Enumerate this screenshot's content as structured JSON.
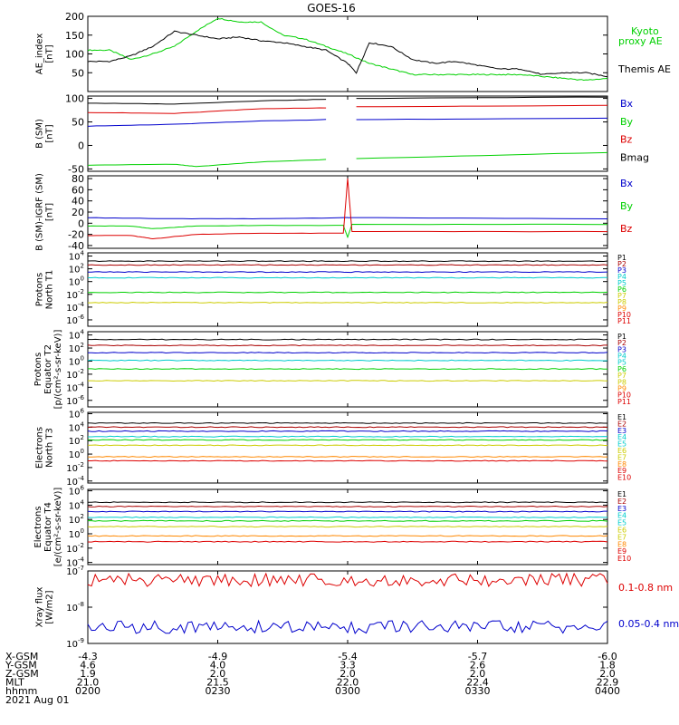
{
  "title": "GOES-16",
  "colors": {
    "black": "#000000",
    "green": "#00d000",
    "blue": "#0000cc",
    "red": "#dd0000",
    "orange": "#ff8800",
    "cyan": "#00cccc",
    "yellow": "#cccc00",
    "dark_red": "#aa0000"
  },
  "time_axis": {
    "ticks": [
      "0200",
      "0230",
      "0300",
      "0330",
      "0400"
    ],
    "rows": [
      {
        "label": "X-GSM",
        "values": [
          "-4.3",
          "-4.9",
          "-5.4",
          "-5.7",
          "-6.0"
        ]
      },
      {
        "label": "Y-GSM",
        "values": [
          "4.6",
          "4.0",
          "3.3",
          "2.6",
          "1.8"
        ]
      },
      {
        "label": "Z-GSM",
        "values": [
          "1.9",
          "2.0",
          "2.0",
          "2.0",
          "2.0"
        ]
      },
      {
        "label": "MLT",
        "values": [
          "21.0",
          "21.5",
          "22.0",
          "22.4",
          "22.9"
        ]
      },
      {
        "label": "hhmm",
        "values": [
          "0200",
          "0230",
          "0300",
          "0330",
          "0400"
        ]
      }
    ],
    "date": "2021 Aug 01"
  },
  "chart_data": [
    {
      "id": "ae",
      "type": "line",
      "ylabel": [
        "AE_index",
        "[nT]"
      ],
      "ylim": [
        0,
        200
      ],
      "ytick_labels": [
        "200",
        "150",
        "100",
        "50"
      ],
      "ytick_values": [
        200,
        150,
        100,
        50
      ],
      "legend": [
        {
          "text": "Kyoto",
          "color": "green"
        },
        {
          "text": "proxy AE",
          "color": "green"
        },
        {
          "text": "Themis AE",
          "color": "black"
        }
      ],
      "series": [
        {
          "name": "Kyoto proxy AE",
          "color": "green",
          "x": [
            0,
            5,
            10,
            15,
            20,
            25,
            30,
            35,
            40,
            45,
            50,
            55,
            60,
            65,
            70,
            75,
            80,
            85,
            90,
            95,
            100,
            105,
            110,
            115,
            120
          ],
          "values": [
            110,
            110,
            85,
            100,
            120,
            160,
            195,
            185,
            185,
            150,
            140,
            120,
            100,
            75,
            60,
            45,
            45,
            45,
            45,
            45,
            45,
            40,
            35,
            30,
            35
          ]
        },
        {
          "name": "Themis AE",
          "color": "black",
          "x": [
            0,
            5,
            10,
            15,
            20,
            25,
            30,
            35,
            40,
            45,
            50,
            55,
            60,
            62,
            65,
            70,
            75,
            80,
            85,
            90,
            95,
            100,
            105,
            110,
            115,
            120
          ],
          "values": [
            80,
            80,
            95,
            120,
            160,
            150,
            140,
            145,
            135,
            130,
            120,
            110,
            75,
            50,
            130,
            120,
            85,
            75,
            80,
            70,
            60,
            60,
            45,
            50,
            50,
            40
          ]
        }
      ]
    },
    {
      "id": "bsm",
      "type": "line",
      "ylabel": [
        "B (SM)",
        "[nT]"
      ],
      "ylim": [
        -55,
        105
      ],
      "ytick_labels": [
        "100",
        "50",
        "0",
        "-50"
      ],
      "ytick_values": [
        100,
        50,
        0,
        -50
      ],
      "legend": [
        {
          "text": "Bx",
          "color": "blue"
        },
        {
          "text": "By",
          "color": "green"
        },
        {
          "text": "Bz",
          "color": "red"
        },
        {
          "text": "Bmag",
          "color": "black"
        }
      ],
      "series": [
        {
          "name": "Bx",
          "color": "blue",
          "x": [
            0,
            20,
            40,
            55,
            58,
            60,
            62,
            120
          ],
          "values": [
            41,
            45,
            52,
            55,
            null,
            null,
            55,
            58
          ]
        },
        {
          "name": "By",
          "color": "green",
          "x": [
            0,
            20,
            25,
            40,
            55,
            58,
            60,
            62,
            120
          ],
          "values": [
            -42,
            -40,
            -45,
            -35,
            -30,
            null,
            null,
            -28,
            -15
          ]
        },
        {
          "name": "Bz",
          "color": "red",
          "x": [
            0,
            20,
            40,
            55,
            58,
            60,
            62,
            120
          ],
          "values": [
            70,
            68,
            78,
            80,
            null,
            null,
            82,
            85
          ]
        },
        {
          "name": "Bmag",
          "color": "black",
          "x": [
            0,
            20,
            40,
            55,
            58,
            60,
            62,
            120
          ],
          "values": [
            90,
            88,
            95,
            98,
            null,
            null,
            100,
            103
          ]
        }
      ]
    },
    {
      "id": "bigrf",
      "type": "line",
      "ylabel": [
        "B (SM)-IGRF (SM)",
        "[nT]"
      ],
      "ylim": [
        -45,
        85
      ],
      "ytick_labels": [
        "80",
        "60",
        "40",
        "20",
        "0",
        "-20",
        "-40"
      ],
      "ytick_values": [
        80,
        60,
        40,
        20,
        0,
        -20,
        -40
      ],
      "legend": [
        {
          "text": "Bx",
          "color": "blue"
        },
        {
          "text": "By",
          "color": "green"
        },
        {
          "text": "Bz",
          "color": "red"
        }
      ],
      "series": [
        {
          "name": "Bx",
          "color": "blue",
          "x": [
            0,
            20,
            40,
            60,
            61,
            120
          ],
          "values": [
            10,
            8,
            8,
            10,
            10,
            8
          ]
        },
        {
          "name": "By",
          "color": "green",
          "x": [
            0,
            10,
            15,
            25,
            40,
            59,
            60,
            61,
            120
          ],
          "values": [
            -5,
            -5,
            -10,
            -5,
            -4,
            -4,
            -25,
            -2,
            -2
          ]
        },
        {
          "name": "Bz",
          "color": "red",
          "x": [
            0,
            10,
            15,
            25,
            40,
            59,
            60,
            61,
            120
          ],
          "values": [
            -22,
            -22,
            -28,
            -20,
            -18,
            -18,
            80,
            -15,
            -15
          ]
        }
      ]
    },
    {
      "id": "p1",
      "type": "line",
      "log": true,
      "ylabel": [
        "Protons",
        "North T1"
      ],
      "ylim_exp": [
        -7,
        4.5
      ],
      "ytick_exps": [
        4,
        2,
        0,
        -2,
        -4,
        -6
      ],
      "legend": [
        {
          "text": "P1",
          "color": "black"
        },
        {
          "text": "P2",
          "color": "dark_red"
        },
        {
          "text": "P3",
          "color": "blue"
        },
        {
          "text": "P4",
          "color": "cyan"
        },
        {
          "text": "P5",
          "color": "cyan"
        },
        {
          "text": "P6",
          "color": "green"
        },
        {
          "text": "P7",
          "color": "yellow"
        },
        {
          "text": "P8",
          "color": "yellow"
        },
        {
          "text": "P9",
          "color": "orange"
        },
        {
          "text": "P10",
          "color": "red"
        },
        {
          "text": "P11",
          "color": "red"
        }
      ],
      "series": [
        {
          "color": "black",
          "level_exp": 3.2
        },
        {
          "color": "dark_red",
          "level_exp": 2.6
        },
        {
          "color": "blue",
          "level_exp": 1.5
        },
        {
          "color": "cyan",
          "level_exp": 0.6
        },
        {
          "color": "green",
          "level_exp": -1.7
        },
        {
          "color": "yellow",
          "level_exp": -3.3
        }
      ]
    },
    {
      "id": "p2",
      "type": "line",
      "log": true,
      "ylabel": [
        "Protons",
        "Equator T2",
        "[p/(cm²-s-sr-keV)]"
      ],
      "ylim_exp": [
        -7,
        4.5
      ],
      "ytick_exps": [
        4,
        2,
        0,
        -2,
        -4,
        -6
      ],
      "legend": [
        {
          "text": "P1",
          "color": "black"
        },
        {
          "text": "P2",
          "color": "dark_red"
        },
        {
          "text": "P3",
          "color": "blue"
        },
        {
          "text": "P4",
          "color": "cyan"
        },
        {
          "text": "P5",
          "color": "cyan"
        },
        {
          "text": "P6",
          "color": "green"
        },
        {
          "text": "P7",
          "color": "yellow"
        },
        {
          "text": "P8",
          "color": "yellow"
        },
        {
          "text": "P9",
          "color": "orange"
        },
        {
          "text": "P10",
          "color": "red"
        },
        {
          "text": "P11",
          "color": "red"
        }
      ],
      "series": [
        {
          "color": "black",
          "level_exp": 3.3
        },
        {
          "color": "dark_red",
          "level_exp": 2.4
        },
        {
          "color": "blue",
          "level_exp": 1.3
        },
        {
          "color": "cyan",
          "level_exp": 0.1
        },
        {
          "color": "green",
          "level_exp": -1.2
        },
        {
          "color": "yellow",
          "level_exp": -3.0
        }
      ]
    },
    {
      "id": "e1",
      "type": "line",
      "log": true,
      "ylabel": [
        "Electrons",
        "North T3"
      ],
      "ylim_exp": [
        -4.3,
        6.2
      ],
      "ytick_exps": [
        6,
        4,
        2,
        0,
        -2,
        -4
      ],
      "legend": [
        {
          "text": "E1",
          "color": "black"
        },
        {
          "text": "E2",
          "color": "dark_red"
        },
        {
          "text": "E3",
          "color": "blue"
        },
        {
          "text": "E4",
          "color": "cyan"
        },
        {
          "text": "E5",
          "color": "cyan"
        },
        {
          "text": "E6",
          "color": "yellow"
        },
        {
          "text": "E7",
          "color": "yellow"
        },
        {
          "text": "E8",
          "color": "orange"
        },
        {
          "text": "E9",
          "color": "red"
        },
        {
          "text": "E10",
          "color": "red"
        }
      ],
      "series": [
        {
          "color": "black",
          "level_exp": 4.6
        },
        {
          "color": "dark_red",
          "level_exp": 4.0
        },
        {
          "color": "blue",
          "level_exp": 3.4
        },
        {
          "color": "cyan",
          "level_exp": 2.6
        },
        {
          "color": "green",
          "level_exp": 2.1
        },
        {
          "color": "yellow",
          "level_exp": 1.3
        },
        {
          "color": "orange",
          "level_exp": -0.4
        },
        {
          "color": "red",
          "level_exp": -1.0
        }
      ]
    },
    {
      "id": "e2",
      "type": "line",
      "log": true,
      "ylabel": [
        "Electrons",
        "Equator T4",
        "[e/(cm²-s-sr-keV)]"
      ],
      "ylim_exp": [
        -4.3,
        6.2
      ],
      "ytick_exps": [
        6,
        4,
        2,
        0,
        -2,
        -4
      ],
      "legend": [
        {
          "text": "E1",
          "color": "black"
        },
        {
          "text": "E2",
          "color": "dark_red"
        },
        {
          "text": "E3",
          "color": "blue"
        },
        {
          "text": "E4",
          "color": "cyan"
        },
        {
          "text": "E5",
          "color": "cyan"
        },
        {
          "text": "E6",
          "color": "yellow"
        },
        {
          "text": "E7",
          "color": "yellow"
        },
        {
          "text": "E8",
          "color": "orange"
        },
        {
          "text": "E9",
          "color": "red"
        },
        {
          "text": "E10",
          "color": "red"
        }
      ],
      "series": [
        {
          "color": "black",
          "level_exp": 4.4
        },
        {
          "color": "dark_red",
          "level_exp": 3.8
        },
        {
          "color": "blue",
          "level_exp": 3.1
        },
        {
          "color": "cyan",
          "level_exp": 2.3
        },
        {
          "color": "green",
          "level_exp": 1.8
        },
        {
          "color": "yellow",
          "level_exp": 1.0
        },
        {
          "color": "orange",
          "level_exp": -0.3
        },
        {
          "color": "red",
          "level_exp": -1.1
        }
      ]
    },
    {
      "id": "xray",
      "type": "line",
      "log": true,
      "ylabel": [
        "Xray flux",
        "[W/m2]"
      ],
      "ylim_exp": [
        -9,
        -7
      ],
      "ytick_exps": [
        -7,
        -8,
        -9
      ],
      "legend": [
        {
          "text": "0.1-0.8 nm",
          "color": "red"
        },
        {
          "text": "0.05-0.4 nm",
          "color": "blue"
        }
      ],
      "series": [
        {
          "name": "0.1-0.8 nm",
          "color": "red",
          "level_exp": -7.25
        },
        {
          "name": "0.05-0.4 nm",
          "color": "blue",
          "level_exp": -8.55
        }
      ]
    }
  ]
}
